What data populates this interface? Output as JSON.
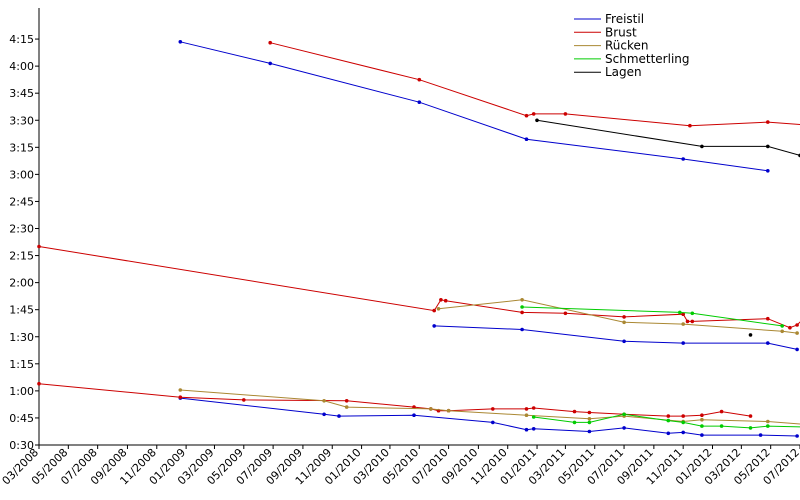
{
  "chart_data": {
    "type": "line",
    "title": "",
    "xlabel": "",
    "ylabel": "",
    "x_axis": {
      "range": [
        "2008-03",
        "2012-07"
      ],
      "tick_labels": [
        "03/2008",
        "05/2008",
        "07/2008",
        "09/2008",
        "11/2008",
        "01/2009",
        "03/2009",
        "05/2009",
        "07/2009",
        "09/2009",
        "11/2009",
        "01/2010",
        "03/2010",
        "05/2010",
        "07/2010",
        "09/2010",
        "11/2010",
        "01/2011",
        "03/2011",
        "05/2011",
        "07/2011",
        "09/2011",
        "11/2011",
        "01/2012",
        "03/2012",
        "05/2012",
        "07/2012"
      ]
    },
    "y_axis": {
      "unit": "seconds",
      "range": [
        30,
        270
      ],
      "tick_values": [
        30,
        45,
        60,
        75,
        90,
        105,
        120,
        135,
        150,
        165,
        180,
        195,
        210,
        225,
        240,
        255
      ],
      "tick_labels": [
        "0:30",
        "0:45",
        "1:00",
        "1:15",
        "1:30",
        "1:45",
        "2:00",
        "2:15",
        "2:30",
        "2:45",
        "3:00",
        "3:15",
        "3:30",
        "3:45",
        "4:00",
        "4:15"
      ]
    },
    "grid": false,
    "legend_position": "top-right",
    "series": [
      {
        "name": "Freistil",
        "color": "#0000cc",
        "segments": [
          [
            [
              "2008-12-20",
              253.5
            ],
            [
              "2009-06-25",
              241.5
            ],
            [
              "2010-05-01",
              220.0
            ],
            [
              "2010-12-10",
              199.5
            ],
            [
              "2011-11-01",
              188.5
            ],
            [
              "2012-04-25",
              182.0
            ]
          ],
          [
            [
              "2010-06-01",
              96.0
            ],
            [
              "2010-12-01",
              94.0
            ],
            [
              "2011-07-01",
              87.5
            ],
            [
              "2011-11-01",
              86.5
            ],
            [
              "2012-04-25",
              86.5
            ],
            [
              "2012-06-25",
              83.0
            ]
          ],
          [
            [
              "2008-12-20",
              56.0
            ],
            [
              "2009-10-15",
              47.0
            ],
            [
              "2009-11-15",
              46.0
            ],
            [
              "2010-04-20",
              46.5
            ],
            [
              "2010-10-01",
              42.5
            ],
            [
              "2010-12-10",
              38.5
            ],
            [
              "2010-12-25",
              39.0
            ],
            [
              "2011-04-20",
              37.5
            ],
            [
              "2011-07-01",
              39.5
            ],
            [
              "2011-10-01",
              36.5
            ],
            [
              "2011-11-01",
              37.0
            ],
            [
              "2011-12-10",
              35.5
            ],
            [
              "2012-04-10",
              35.5
            ],
            [
              "2012-06-25",
              35.0
            ]
          ]
        ]
      },
      {
        "name": "Brust",
        "color": "#cc0000",
        "segments": [
          [
            [
              "2009-06-25",
              253.0
            ],
            [
              "2010-05-01",
              232.5
            ],
            [
              "2010-12-10",
              212.5
            ],
            [
              "2010-12-25",
              213.5
            ],
            [
              "2011-03-01",
              213.5
            ],
            [
              "2011-11-15",
              207.0
            ],
            [
              "2012-04-25",
              209.0
            ],
            [
              "2012-07-10",
              207.5
            ]
          ],
          [
            [
              "2008-03-01",
              140.0
            ],
            [
              "2010-06-01",
              104.5
            ],
            [
              "2010-06-15",
              110.5
            ],
            [
              "2010-06-25",
              110.0
            ],
            [
              "2010-12-01",
              103.5
            ],
            [
              "2011-03-01",
              103.0
            ],
            [
              "2011-07-01",
              101.0
            ],
            [
              "2011-11-01",
              102.5
            ],
            [
              "2011-11-10",
              98.5
            ],
            [
              "2011-11-20",
              98.5
            ],
            [
              "2012-04-25",
              100.0
            ],
            [
              "2012-06-10",
              95.0
            ],
            [
              "2012-06-25",
              96.5
            ],
            [
              "2012-07-10",
              100.5
            ]
          ],
          [
            [
              "2008-03-01",
              64.0
            ],
            [
              "2008-12-20",
              56.5
            ],
            [
              "2009-05-01",
              55.0
            ],
            [
              "2009-12-01",
              54.5
            ],
            [
              "2010-04-20",
              51.0
            ],
            [
              "2010-05-25",
              50.0
            ],
            [
              "2010-06-10",
              49.0
            ],
            [
              "2010-07-01",
              49.0
            ],
            [
              "2010-10-01",
              50.0
            ],
            [
              "2010-12-10",
              50.0
            ],
            [
              "2010-12-25",
              50.5
            ],
            [
              "2011-03-20",
              48.5
            ],
            [
              "2011-04-20",
              48.0
            ],
            [
              "2011-07-01",
              47.0
            ],
            [
              "2011-10-01",
              46.0
            ],
            [
              "2011-11-01",
              46.0
            ],
            [
              "2011-12-10",
              46.5
            ],
            [
              "2012-01-20",
              48.5
            ],
            [
              "2012-03-20",
              46.0
            ]
          ]
        ]
      },
      {
        "name": "Rücken",
        "color": "#aa8833",
        "segments": [
          [
            [
              "2010-06-10",
              105.5
            ],
            [
              "2010-12-01",
              110.5
            ],
            [
              "2011-07-01",
              98.0
            ],
            [
              "2011-11-01",
              97.0
            ],
            [
              "2012-05-25",
              93.0
            ],
            [
              "2012-06-25",
              92.0
            ]
          ],
          [
            [
              "2008-12-20",
              60.5
            ],
            [
              "2009-10-15",
              54.5
            ],
            [
              "2009-12-01",
              51.0
            ],
            [
              "2010-05-25",
              50.0
            ],
            [
              "2010-07-01",
              49.0
            ],
            [
              "2010-12-10",
              46.5
            ],
            [
              "2011-04-20",
              44.5
            ],
            [
              "2011-07-01",
              46.0
            ],
            [
              "2011-11-01",
              43.0
            ],
            [
              "2011-12-10",
              44.0
            ],
            [
              "2012-04-25",
              43.0
            ],
            [
              "2012-07-10",
              41.5
            ]
          ]
        ]
      },
      {
        "name": "Schmetterling",
        "color": "#00cc00",
        "segments": [
          [
            [
              "2010-12-01",
              106.5
            ],
            [
              "2011-10-25",
              103.5
            ],
            [
              "2011-11-20",
              103.0
            ],
            [
              "2012-05-25",
              96.0
            ]
          ],
          [
            [
              "2010-12-25",
              45.5
            ],
            [
              "2011-03-20",
              42.5
            ],
            [
              "2011-04-20",
              42.5
            ],
            [
              "2011-07-01",
              47.0
            ],
            [
              "2011-10-01",
              43.5
            ],
            [
              "2011-11-01",
              42.5
            ],
            [
              "2011-12-10",
              40.5
            ],
            [
              "2012-01-20",
              40.5
            ],
            [
              "2012-03-20",
              39.5
            ],
            [
              "2012-04-25",
              40.5
            ],
            [
              "2012-07-10",
              40.0
            ]
          ]
        ]
      },
      {
        "name": "Lagen",
        "color": "#000000",
        "segments": [
          [
            [
              "2011-01-01",
              210.0
            ],
            [
              "2011-12-10",
              195.5
            ],
            [
              "2012-04-25",
              195.5
            ],
            [
              "2012-07-01",
              190.5
            ]
          ],
          [
            [
              "2012-03-20",
              91.0
            ]
          ]
        ]
      }
    ]
  }
}
